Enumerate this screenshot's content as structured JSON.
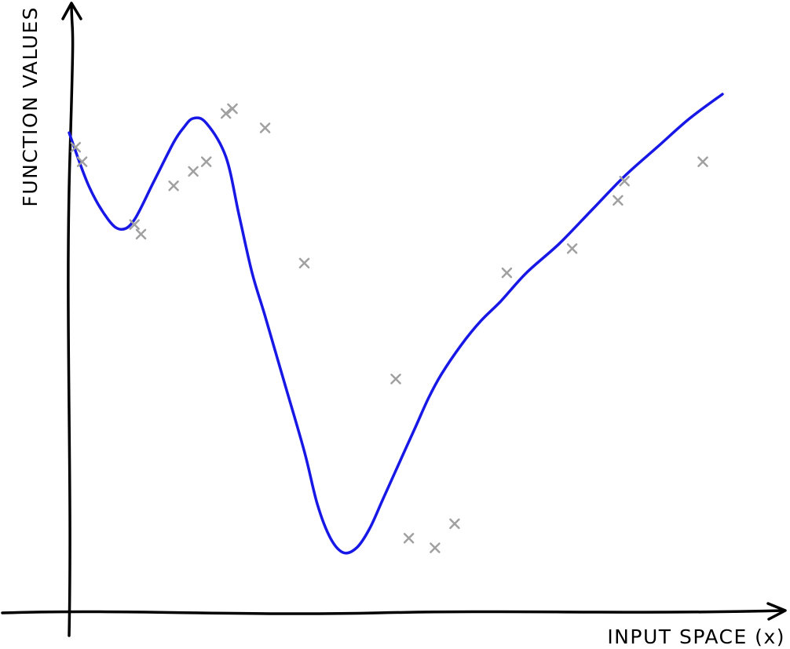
{
  "chart_data": {
    "type": "line",
    "title": "",
    "xlabel": "INPUT SPACE (x)",
    "ylabel": "FUNCTION VALUES",
    "xlim": [
      0,
      1
    ],
    "ylim": [
      0,
      1
    ],
    "grid": false,
    "legend": "none",
    "colors": {
      "fit": "#1818e6",
      "observations": "#a0a0a0",
      "axes": "#000000"
    },
    "series": [
      {
        "type": "line",
        "x": [
          0.0,
          0.03,
          0.06,
          0.08,
          0.1,
          0.13,
          0.16,
          0.175,
          0.19,
          0.21,
          0.24,
          0.26,
          0.28,
          0.3,
          0.33,
          0.36,
          0.38,
          0.4,
          0.42,
          0.44,
          0.46,
          0.48,
          0.5,
          0.53,
          0.55,
          0.57,
          0.6,
          0.63,
          0.66,
          0.7,
          0.75,
          0.8,
          0.85,
          0.9,
          0.95,
          1.0
        ],
        "y": [
          0.92,
          0.81,
          0.74,
          0.72,
          0.74,
          0.82,
          0.9,
          0.93,
          0.95,
          0.94,
          0.87,
          0.75,
          0.63,
          0.54,
          0.4,
          0.26,
          0.15,
          0.08,
          0.05,
          0.06,
          0.1,
          0.16,
          0.22,
          0.31,
          0.37,
          0.42,
          0.48,
          0.53,
          0.57,
          0.63,
          0.69,
          0.76,
          0.83,
          0.89,
          0.95,
          1.0
        ]
      },
      {
        "type": "scatter",
        "marker": "x",
        "x": [
          0.01,
          0.02,
          0.1,
          0.11,
          0.16,
          0.19,
          0.21,
          0.24,
          0.25,
          0.3,
          0.36,
          0.5,
          0.52,
          0.56,
          0.59,
          0.67,
          0.77,
          0.84,
          0.85,
          0.97
        ],
        "y": [
          0.89,
          0.86,
          0.73,
          0.71,
          0.81,
          0.84,
          0.86,
          0.96,
          0.97,
          0.93,
          0.65,
          0.41,
          0.08,
          0.06,
          0.11,
          0.63,
          0.68,
          0.78,
          0.82,
          0.86
        ]
      }
    ]
  }
}
